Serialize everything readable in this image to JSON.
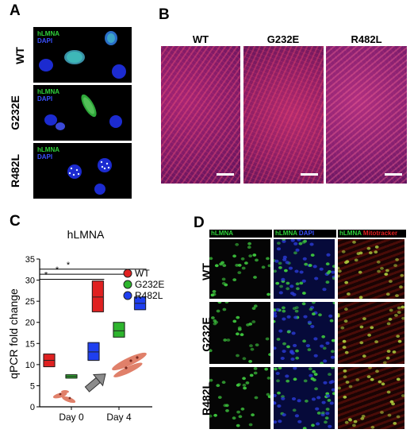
{
  "panel_a": {
    "label": "A",
    "stain_green": "hLMNA",
    "stain_blue": "DAPI",
    "rows": [
      "WT",
      "G232E",
      "R482L"
    ]
  },
  "panel_b": {
    "label": "B",
    "columns": [
      "WT",
      "G232E",
      "R482L"
    ]
  },
  "panel_c": {
    "label": "C",
    "title": "hLMNA",
    "ylabel": "qPCR fold change",
    "legend": [
      "WT",
      "G232E",
      "R482L"
    ],
    "significance": [
      "*",
      "*",
      "*"
    ]
  },
  "panel_d": {
    "label": "D",
    "col_headers": [
      {
        "parts": [
          {
            "text": "hLMNA",
            "color": "green"
          }
        ]
      },
      {
        "parts": [
          {
            "text": "hLMNA",
            "color": "green"
          },
          {
            "text": " DAPI",
            "color": "blue"
          }
        ]
      },
      {
        "parts": [
          {
            "text": "hLMNA",
            "color": "green"
          },
          {
            "text": " Mitotracker",
            "color": "red"
          }
        ]
      }
    ],
    "rows": [
      "WT",
      "G232E",
      "R482L"
    ]
  },
  "colors": {
    "wt": "#e02020",
    "g232e": "#2db52d",
    "r482l": "#1f3ff0"
  },
  "chart_data": {
    "type": "box",
    "title": "hLMNA",
    "ylabel": "qPCR fold change",
    "xlabel": "",
    "categories": [
      "Day 0",
      "Day 4"
    ],
    "ylim": [
      0,
      35
    ],
    "yticks": [
      0,
      5,
      10,
      15,
      20,
      25,
      30,
      35
    ],
    "series": [
      {
        "name": "WT",
        "values": [
          {
            "low": 9.5,
            "mid": 11,
            "high": 12.5
          },
          {
            "low": 22.5,
            "mid": 26,
            "high": 29.8
          }
        ]
      },
      {
        "name": "G232E",
        "values": [
          {
            "low": 6.8,
            "mid": 7.2,
            "high": 7.6
          },
          {
            "low": 16.5,
            "mid": 18,
            "high": 20
          }
        ]
      },
      {
        "name": "R482L",
        "values": [
          {
            "low": 11,
            "mid": 13,
            "high": 15.2
          },
          {
            "low": 23,
            "mid": 24.5,
            "high": 26
          }
        ]
      }
    ]
  }
}
